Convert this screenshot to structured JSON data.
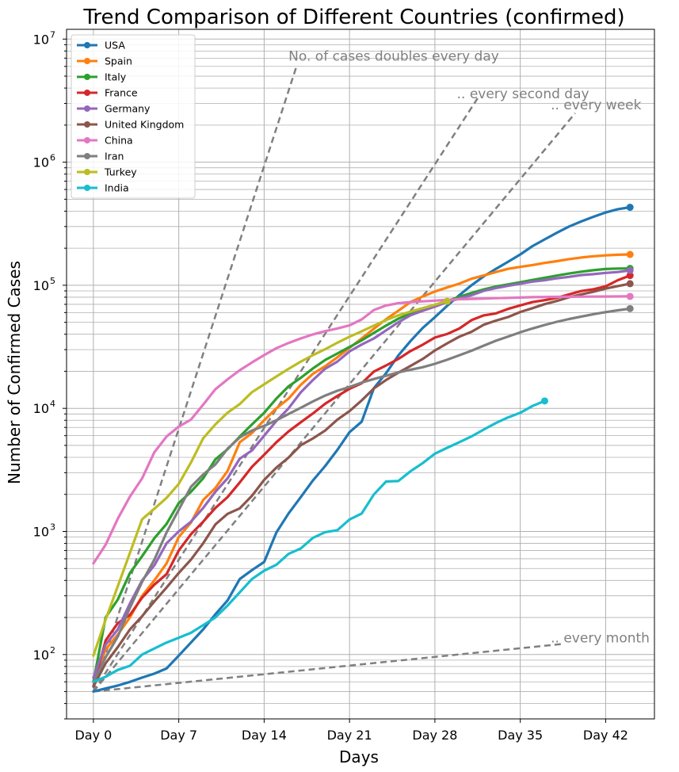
{
  "chart_data": {
    "type": "line",
    "title": "Trend Comparison of Different Countries (confirmed)",
    "xlabel": "Days",
    "ylabel": "Number of Confirmed Cases",
    "y_scale": "log",
    "ylim": [
      30,
      12000000
    ],
    "xlim": [
      -2.2,
      46
    ],
    "grid": true,
    "legend_position": "top-left",
    "x_ticks": [
      {
        "value": 0,
        "label": "Day 0"
      },
      {
        "value": 7,
        "label": "Day 7"
      },
      {
        "value": 14,
        "label": "Day 14"
      },
      {
        "value": 21,
        "label": "Day 21"
      },
      {
        "value": 28,
        "label": "Day 28"
      },
      {
        "value": 35,
        "label": "Day 35"
      },
      {
        "value": 42,
        "label": "Day 42"
      }
    ],
    "y_ticks": [
      {
        "value": 100,
        "base": "10",
        "exp": "2"
      },
      {
        "value": 1000,
        "base": "10",
        "exp": "3"
      },
      {
        "value": 10000,
        "base": "10",
        "exp": "4"
      },
      {
        "value": 100000,
        "base": "10",
        "exp": "5"
      },
      {
        "value": 1000000,
        "base": "10",
        "exp": "6"
      },
      {
        "value": 10000000,
        "base": "10",
        "exp": "7"
      }
    ],
    "reference_lines": [
      {
        "label": "No. of cases doubles every day",
        "x": [
          0,
          16.7
        ],
        "y": [
          50,
          6200000
        ],
        "label_at": [
          16,
          6700000
        ]
      },
      {
        "label": ".. every second day",
        "x": [
          0,
          31.5
        ],
        "y": [
          50,
          3300000
        ],
        "label_at": [
          29.8,
          3300000
        ]
      },
      {
        "label": ".. every week",
        "x": [
          0,
          39.5
        ],
        "y": [
          50,
          2500000
        ],
        "label_at": [
          37.5,
          2680000
        ]
      },
      {
        "label": ".. every month",
        "x": [
          0,
          38.5
        ],
        "y": [
          50,
          122
        ],
        "label_at": [
          37.5,
          125
        ]
      }
    ],
    "series": [
      {
        "name": "USA",
        "color": "#1f77b4",
        "x": [
          0,
          1,
          2,
          3,
          4,
          5,
          6,
          7,
          8,
          9,
          10,
          11,
          12,
          13,
          14,
          15,
          16,
          17,
          18,
          19,
          20,
          21,
          22,
          23,
          24,
          25,
          26,
          27,
          28,
          29,
          30,
          31,
          32,
          33,
          34,
          35,
          36,
          37,
          38,
          39,
          40,
          41,
          42,
          43,
          44
        ],
        "y": [
          50,
          53,
          56,
          60,
          65,
          70,
          77,
          98,
          125,
          160,
          212,
          275,
          410,
          485,
          565,
          980,
          1400,
          1900,
          2600,
          3400,
          4600,
          6400,
          7800,
          14600,
          19300,
          26900,
          35200,
          45000,
          55000,
          68000,
          83000,
          100000,
          118000,
          136000,
          155000,
          178000,
          208000,
          236000,
          267000,
          300000,
          330000,
          360000,
          390000,
          415000,
          430000
        ]
      },
      {
        "name": "Spain",
        "color": "#ff7f0e",
        "x": [
          0,
          1,
          2,
          3,
          4,
          5,
          6,
          7,
          8,
          9,
          10,
          11,
          12,
          13,
          14,
          15,
          16,
          17,
          18,
          19,
          20,
          21,
          22,
          23,
          24,
          25,
          26,
          27,
          28,
          29,
          30,
          31,
          32,
          33,
          34,
          35,
          36,
          37,
          38,
          39,
          40,
          41,
          42,
          43,
          44
        ],
        "y": [
          60,
          110,
          145,
          200,
          300,
          400,
          550,
          900,
          1180,
          1800,
          2250,
          3100,
          5300,
          6300,
          8000,
          10000,
          12000,
          15500,
          19100,
          22000,
          26000,
          31000,
          37000,
          44300,
          53000,
          62000,
          73000,
          81000,
          89000,
          96000,
          103000,
          113000,
          120000,
          128000,
          136000,
          141000,
          146000,
          152000,
          157000,
          163000,
          168000,
          172000,
          175000,
          177000,
          178000
        ]
      },
      {
        "name": "Italy",
        "color": "#2ca02c",
        "x": [
          0,
          1,
          2,
          3,
          4,
          5,
          6,
          7,
          8,
          9,
          10,
          11,
          12,
          13,
          14,
          15,
          16,
          17,
          18,
          19,
          20,
          21,
          22,
          23,
          24,
          25,
          26,
          27,
          28,
          29,
          30,
          31,
          32,
          33,
          34,
          35,
          36,
          37,
          38,
          39,
          40,
          41,
          42,
          43,
          44
        ],
        "y": [
          60,
          200,
          280,
          460,
          630,
          880,
          1150,
          1700,
          2100,
          2700,
          3850,
          4650,
          5900,
          7400,
          9200,
          12000,
          15100,
          17700,
          21100,
          24700,
          27900,
          31500,
          35700,
          41000,
          47000,
          53500,
          59100,
          63900,
          69200,
          74400,
          80500,
          86500,
          92500,
          97700,
          101700,
          105800,
          110500,
          115200,
          119800,
          124600,
          128900,
          132500,
          135600,
          136800,
          137000
        ]
      },
      {
        "name": "France",
        "color": "#d62728",
        "x": [
          0,
          1,
          2,
          3,
          4,
          5,
          6,
          7,
          8,
          9,
          10,
          11,
          12,
          13,
          14,
          15,
          16,
          17,
          18,
          19,
          20,
          21,
          22,
          23,
          24,
          25,
          26,
          27,
          28,
          29,
          30,
          31,
          32,
          33,
          34,
          35,
          36,
          37,
          38,
          39,
          40,
          41,
          42,
          43,
          44
        ],
        "y": [
          55,
          130,
          180,
          210,
          290,
          370,
          450,
          700,
          950,
          1200,
          1550,
          1900,
          2500,
          3350,
          4200,
          5300,
          6500,
          7700,
          9100,
          10900,
          12600,
          14400,
          16000,
          19900,
          22300,
          25200,
          29200,
          32900,
          37600,
          40200,
          44500,
          52100,
          56900,
          59100,
          64300,
          68600,
          73000,
          75700,
          79000,
          84300,
          89700,
          92800,
          98000,
          110000,
          120000
        ]
      },
      {
        "name": "Germany",
        "color": "#9467bd",
        "x": [
          0,
          1,
          2,
          3,
          4,
          5,
          6,
          7,
          8,
          9,
          10,
          11,
          12,
          13,
          14,
          15,
          16,
          17,
          18,
          19,
          20,
          21,
          22,
          23,
          24,
          25,
          26,
          27,
          28,
          29,
          30,
          31,
          32,
          33,
          34,
          35,
          36,
          37,
          38,
          39,
          40,
          41,
          42,
          43,
          44
        ],
        "y": [
          65,
          120,
          160,
          260,
          400,
          530,
          800,
          1000,
          1200,
          1550,
          2100,
          2700,
          3900,
          4550,
          6000,
          7900,
          10000,
          13500,
          17000,
          21000,
          24000,
          29000,
          33000,
          37000,
          43000,
          50000,
          57000,
          62000,
          67000,
          73000,
          78000,
          83000,
          90000,
          95000,
          99000,
          103000,
          107000,
          110000,
          114000,
          117000,
          121000,
          123000,
          126000,
          128000,
          132000
        ]
      },
      {
        "name": "United Kingdom",
        "color": "#8c564b",
        "x": [
          0,
          1,
          2,
          3,
          4,
          5,
          6,
          7,
          8,
          9,
          10,
          11,
          12,
          13,
          14,
          15,
          16,
          17,
          18,
          19,
          20,
          21,
          22,
          23,
          24,
          25,
          26,
          27,
          28,
          29,
          30,
          31,
          32,
          33,
          34,
          35,
          36,
          37,
          38,
          39,
          40,
          41,
          42,
          43,
          44
        ],
        "y": [
          55,
          85,
          115,
          160,
          205,
          270,
          350,
          460,
          590,
          800,
          1140,
          1390,
          1540,
          1950,
          2620,
          3300,
          3980,
          5020,
          5700,
          6600,
          8100,
          9500,
          11600,
          14500,
          17000,
          19500,
          22100,
          25200,
          29500,
          33700,
          38200,
          41900,
          47800,
          51600,
          55200,
          60700,
          65100,
          70300,
          74600,
          79900,
          84300,
          88600,
          93900,
          98500,
          103000
        ]
      },
      {
        "name": "China",
        "color": "#e377c2",
        "x": [
          0,
          1,
          2,
          3,
          4,
          5,
          6,
          7,
          8,
          9,
          10,
          11,
          12,
          13,
          14,
          15,
          16,
          17,
          18,
          19,
          20,
          21,
          22,
          23,
          24,
          25,
          26,
          27,
          28,
          29,
          30,
          31,
          32,
          33,
          34,
          35,
          36,
          37,
          38,
          39,
          40,
          41,
          42,
          43,
          44
        ],
        "y": [
          550,
          780,
          1270,
          1920,
          2700,
          4400,
          5900,
          7100,
          8100,
          10700,
          14300,
          17200,
          20400,
          23600,
          27100,
          30800,
          34000,
          37000,
          39900,
          42400,
          44600,
          47200,
          52800,
          63000,
          68500,
          71500,
          73000,
          74000,
          75000,
          76000,
          77000,
          77500,
          78000,
          78500,
          79000,
          79500,
          80000,
          80300,
          80500,
          80700,
          80800,
          80900,
          81000,
          81100,
          81200
        ]
      },
      {
        "name": "Iran",
        "color": "#7f7f7f",
        "x": [
          0,
          1,
          2,
          3,
          4,
          5,
          6,
          7,
          8,
          9,
          10,
          11,
          12,
          13,
          14,
          15,
          16,
          17,
          18,
          19,
          20,
          21,
          22,
          23,
          24,
          25,
          26,
          27,
          28,
          29,
          30,
          31,
          32,
          33,
          34,
          35,
          36,
          37,
          38,
          39,
          40,
          41,
          42,
          43,
          44
        ],
        "y": [
          60,
          95,
          140,
          240,
          390,
          590,
          980,
          1500,
          2300,
          2900,
          3500,
          4700,
          5800,
          6600,
          7200,
          8000,
          9000,
          10100,
          11400,
          12700,
          13900,
          14900,
          16200,
          17300,
          18400,
          19600,
          20600,
          21600,
          23000,
          24800,
          27000,
          29400,
          32300,
          35400,
          38300,
          41500,
          44600,
          47600,
          50500,
          53200,
          55700,
          58200,
          60500,
          62600,
          64600
        ]
      },
      {
        "name": "Turkey",
        "color": "#bcbd22",
        "x": [
          0,
          1,
          2,
          3,
          4,
          5,
          6,
          7,
          8,
          9,
          10,
          11,
          12,
          13,
          14,
          15,
          16,
          17,
          18,
          19,
          20,
          21,
          22,
          23,
          24,
          25,
          26,
          27,
          28,
          29
        ],
        "y": [
          98,
          192,
          359,
          670,
          1256,
          1529,
          1872,
          2433,
          3629,
          5698,
          7402,
          9217,
          10827,
          13531,
          15679,
          18135,
          20921,
          23934,
          27069,
          30217,
          34109,
          38226,
          42282,
          47029,
          52167,
          56956,
          61049,
          65111,
          69392,
          74193
        ]
      },
      {
        "name": "India",
        "color": "#17becf",
        "x": [
          0,
          1,
          2,
          3,
          4,
          5,
          6,
          7,
          8,
          9,
          10,
          11,
          12,
          13,
          14,
          15,
          16,
          17,
          18,
          19,
          20,
          21,
          22,
          23,
          24,
          25,
          26,
          27,
          28,
          29,
          30,
          31,
          32,
          33,
          34,
          35,
          36,
          37
        ],
        "y": [
          60,
          66,
          75,
          81,
          100,
          112,
          125,
          137,
          150,
          173,
          200,
          250,
          320,
          410,
          480,
          536,
          657,
          727,
          887,
          987,
          1024,
          1251,
          1397,
          1998,
          2543,
          2567,
          3082,
          3588,
          4281,
          4778,
          5311,
          5916,
          6725,
          7600,
          8446,
          9205,
          10453,
          11487
        ]
      }
    ]
  }
}
